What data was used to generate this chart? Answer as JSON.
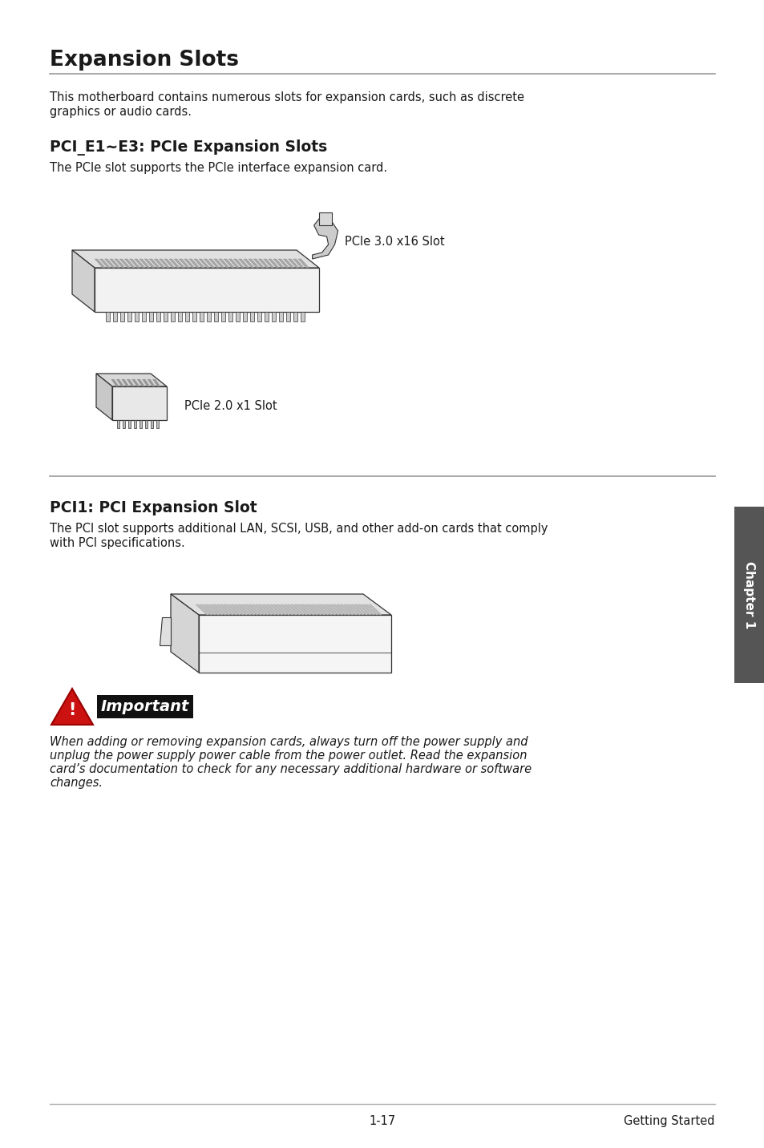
{
  "bg_color": "#ffffff",
  "title": "Expansion Slots",
  "title_fontsize": 19,
  "section1_title": "PCI_E1~E3: PCIe Expansion Slots",
  "section1_body": "The PCIe slot supports the PCIe interface expansion card.",
  "pcie_x16_label": "PCIe 3.0 x16 Slot",
  "pcie_x1_label": "PCIe 2.0 x1 Slot",
  "section2_title": "PCI1: PCI Expansion Slot",
  "section2_body1": "The PCI slot supports additional LAN, SCSI, USB, and other add-on cards that comply",
  "section2_body2": "with PCI specifications.",
  "important_label": "Important",
  "important_line1": "When adding or removing expansion cards, always turn off the power supply and",
  "important_line2": "unplug the power supply power cable from the power outlet. Read the expansion",
  "important_line3": "card’s documentation to check for any necessary additional hardware or software",
  "important_line4": "changes.",
  "footer_page": "1-17",
  "footer_chapter": "Getting Started",
  "chapter_tab_text": "Chapter 1",
  "chapter_tab_bg": "#555555",
  "chapter_tab_fg": "#ffffff",
  "body_fontsize": 10.5,
  "section_fontsize": 13.5,
  "separator_color": "#999999",
  "text_color": "#1a1a1a",
  "line_color": "#444444"
}
